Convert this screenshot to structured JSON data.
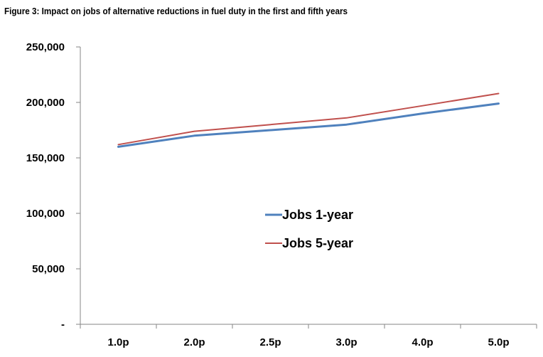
{
  "chart_data": {
    "type": "line",
    "title": "Figure 3: Impact on jobs of alternative reductions in fuel duty in the first and fifth years",
    "xlabel": "",
    "ylabel": "",
    "categories": [
      "1.0p",
      "2.0p",
      "2.5p",
      "3.0p",
      "4.0p",
      "5.0p"
    ],
    "ylim": [
      0,
      250000
    ],
    "yticks": [
      {
        "value": 0,
        "label": "-"
      },
      {
        "value": 50000,
        "label": "50,000"
      },
      {
        "value": 100000,
        "label": "100,000"
      },
      {
        "value": 150000,
        "label": "150,000"
      },
      {
        "value": 200000,
        "label": "200,000"
      },
      {
        "value": 250000,
        "label": "250,000"
      }
    ],
    "grid": false,
    "legend_position": "center",
    "series": [
      {
        "name": "Jobs 1-year",
        "color": "#4f81bd",
        "values": [
          160000,
          170000,
          175000,
          180000,
          190000,
          199000
        ]
      },
      {
        "name": "Jobs 5-year",
        "color": "#c0504d",
        "values": [
          162000,
          174000,
          180000,
          186000,
          197000,
          208000
        ]
      }
    ]
  }
}
